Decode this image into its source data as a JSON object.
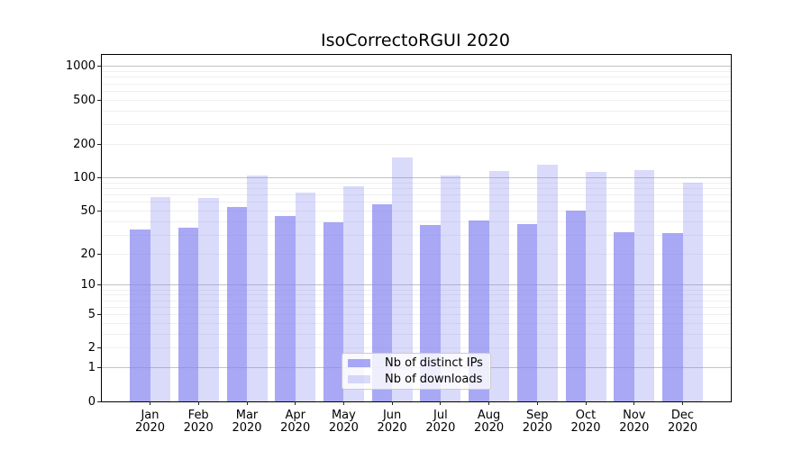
{
  "title": "IsoCorrectoRGUI 2020",
  "chart_data": {
    "type": "bar",
    "title": "IsoCorrectoRGUI 2020",
    "categories": [
      "Jan",
      "Feb",
      "Mar",
      "Apr",
      "May",
      "Jun",
      "Jul",
      "Aug",
      "Sep",
      "Oct",
      "Nov",
      "Dec"
    ],
    "x_year": "2020",
    "series": [
      {
        "name": "Nb of distinct IPs",
        "color": "rgba(131,131,241,0.70)",
        "values": [
          34,
          35,
          54,
          45,
          39,
          57,
          37,
          41,
          38,
          50,
          32,
          31
        ]
      },
      {
        "name": "Nb of downloads",
        "color": "rgba(131,131,241,0.30)",
        "values": [
          67,
          66,
          105,
          73,
          83,
          153,
          104,
          116,
          130,
          113,
          118,
          90
        ]
      }
    ],
    "yscale": "log1p",
    "ylim": [
      0,
      1270
    ],
    "yticks": [
      0,
      1,
      2,
      5,
      10,
      20,
      50,
      100,
      200,
      500,
      1000
    ],
    "grid_major_lines": [
      1,
      10,
      100,
      1000
    ],
    "grid_minor_decades": [
      1,
      10,
      100
    ],
    "grid_minor_multipliers": [
      2,
      3,
      4,
      5,
      6,
      7,
      8,
      9
    ],
    "legend_position": "bottom-center",
    "xlabel": "",
    "ylabel": ""
  },
  "colors": {
    "bar_dark": "rgba(131,131,241,0.70)",
    "bar_light": "rgba(131,131,241,0.30)",
    "grid_major": "#c2c2c2",
    "grid_minor": "#efefef",
    "spine": "#000000",
    "text": "#000000",
    "legend_bg": "rgba(255,255,255,0.8)",
    "legend_border": "#cccccc"
  }
}
